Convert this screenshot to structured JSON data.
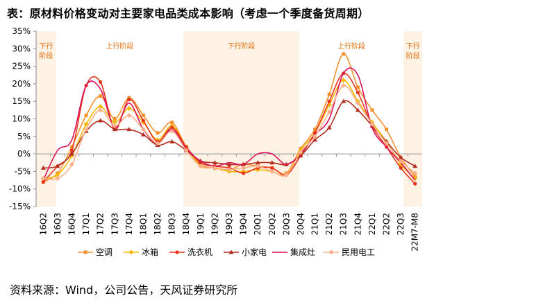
{
  "title": "表：原材料价格变动对主要家电品类成本影响（考虑一个季度备货周期）",
  "source": "资料来源：Wind，公司公告，天风证券研究所",
  "chart_data": {
    "type": "line",
    "categories": [
      "16Q2",
      "16Q3",
      "16Q4",
      "17Q1",
      "17Q2",
      "17Q3",
      "17Q4",
      "18Q1",
      "18Q2",
      "18Q3",
      "18Q4",
      "19Q1",
      "19Q2",
      "19Q3",
      "19Q4",
      "20Q1",
      "20Q2",
      "20Q3",
      "20Q4",
      "21Q1",
      "21Q2",
      "21Q3",
      "21Q4",
      "22Q1",
      "22Q2",
      "22Q3",
      "22M7-M8"
    ],
    "ylim": [
      -15,
      35
    ],
    "yticks": [
      -15,
      -10,
      -5,
      0,
      5,
      10,
      15,
      20,
      25,
      30,
      35
    ],
    "ytick_labels": [
      "-15%",
      "-10%",
      "-5%",
      "0%",
      "5%",
      "10%",
      "15%",
      "20%",
      "25%",
      "30%",
      "35%"
    ],
    "phases": [
      {
        "label": "下行阶段",
        "lines": [
          "下行",
          "阶段"
        ],
        "start": -0.5,
        "end": 0.9,
        "shaded": true
      },
      {
        "label": "上行阶段",
        "lines": [
          "上行阶段"
        ],
        "start": 0.9,
        "end": 9.8,
        "shaded": false
      },
      {
        "label": "下行阶段",
        "lines": [
          "下行阶段"
        ],
        "start": 9.8,
        "end": 17.9,
        "shaded": true
      },
      {
        "label": "上行阶段",
        "lines": [
          "上行阶段"
        ],
        "start": 17.9,
        "end": 25.2,
        "shaded": false
      },
      {
        "label": "下行阶段",
        "lines": [
          "下行",
          "阶段"
        ],
        "start": 25.2,
        "end": 26.5,
        "shaded": true
      }
    ],
    "colors": {
      "shade": "#fdf2e4",
      "phase_text": "#e46c0a"
    },
    "series": [
      {
        "name": "空调",
        "color": "#f5902e",
        "marker": "square",
        "values": [
          -8,
          -5.5,
          2,
          11,
          16.5,
          10,
          16,
          11,
          6,
          9,
          2,
          -3,
          -4,
          -4.5,
          -3,
          -3.5,
          -4,
          -5.5,
          1.5,
          7,
          17,
          28.5,
          19,
          12.5,
          7,
          -1,
          -6.5
        ]
      },
      {
        "name": "冰箱",
        "color": "#f5b800",
        "marker": "diamond",
        "values": [
          -7,
          -6,
          -0.5,
          8.5,
          13.5,
          9,
          13,
          9,
          4,
          8,
          2,
          -3.5,
          -4,
          -5,
          -5,
          -4.5,
          -5,
          -6,
          1,
          6,
          14,
          21,
          15,
          9,
          3.5,
          -3,
          -7
        ]
      },
      {
        "name": "洗衣机",
        "color": "#e8331c",
        "marker": "circle",
        "values": [
          -8,
          -3.5,
          1,
          19.5,
          20.5,
          7,
          15.5,
          9.5,
          3.5,
          7.5,
          2,
          -2.5,
          -3.5,
          -4,
          -5.5,
          -4,
          -4,
          -6,
          -0.5,
          6,
          15,
          23,
          17.5,
          8,
          2,
          -4,
          -8.5
        ]
      },
      {
        "name": "小家电",
        "color": "#b32e1e",
        "marker": "triangle",
        "values": [
          -4,
          -3.5,
          0,
          6.5,
          9.5,
          7,
          7,
          5.5,
          2.5,
          3.5,
          1,
          -2,
          -2.5,
          -3,
          -3,
          -2.5,
          -2.5,
          -3,
          -0.5,
          4,
          7.5,
          15,
          12.5,
          8,
          3.5,
          -1,
          -3.5
        ]
      },
      {
        "name": "集成灶",
        "color": "#d90f5a",
        "marker": "none",
        "values": [
          -7.5,
          1,
          4,
          19.5,
          18.5,
          7.5,
          14.5,
          7,
          3,
          7,
          1.5,
          -2,
          -3.5,
          -2.5,
          -3,
          0,
          0,
          -3,
          0,
          5.5,
          10,
          23,
          22.5,
          7.5,
          2,
          -2.5,
          -7.5
        ]
      },
      {
        "name": "民用电工",
        "color": "#fbb08a",
        "marker": "diamond",
        "values": [
          -7,
          -7,
          -3,
          7,
          12.5,
          8,
          11,
          7,
          3,
          6.5,
          1,
          -3.5,
          -4,
          -4.5,
          -4,
          -3.5,
          -5,
          -6,
          0.5,
          5,
          12,
          19.5,
          14.5,
          8.5,
          3,
          -2,
          -5.5
        ]
      }
    ]
  }
}
